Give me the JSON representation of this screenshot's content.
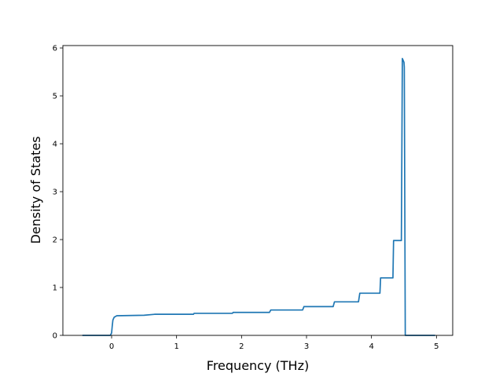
{
  "chart_data": {
    "type": "line",
    "title": "",
    "xlabel": "Frequency (THz)",
    "ylabel": "Density of States",
    "xlim": [
      -0.75,
      5.25
    ],
    "ylim": [
      0,
      6.05
    ],
    "xticks": [
      0,
      1,
      2,
      3,
      4,
      5
    ],
    "xtick_labels": [
      "0",
      "1",
      "2",
      "3",
      "4",
      "5"
    ],
    "yticks": [
      0,
      1,
      2,
      3,
      4,
      5,
      6
    ],
    "ytick_labels": [
      "0",
      "1",
      "2",
      "3",
      "4",
      "5",
      "6"
    ],
    "grid": false,
    "legend": "none",
    "series": [
      {
        "color": "#1f77b4",
        "x": [
          -0.45,
          -0.02,
          0.0,
          0.01,
          0.02,
          0.04,
          0.08,
          0.5,
          0.66,
          1.26,
          1.27,
          1.86,
          1.87,
          2.43,
          2.45,
          2.94,
          2.96,
          3.41,
          3.43,
          3.8,
          3.82,
          4.13,
          4.14,
          4.33,
          4.34,
          4.46,
          4.475,
          4.485,
          4.5,
          4.505,
          4.52,
          4.53,
          4.6,
          4.98
        ],
        "y": [
          0.0,
          0.0,
          0.05,
          0.2,
          0.32,
          0.38,
          0.41,
          0.42,
          0.44,
          0.44,
          0.46,
          0.46,
          0.48,
          0.48,
          0.53,
          0.53,
          0.6,
          0.6,
          0.7,
          0.7,
          0.88,
          0.88,
          1.2,
          1.2,
          1.98,
          1.98,
          5.78,
          5.75,
          5.7,
          5.6,
          0.0,
          0.0,
          0.0,
          0.0
        ]
      }
    ]
  }
}
